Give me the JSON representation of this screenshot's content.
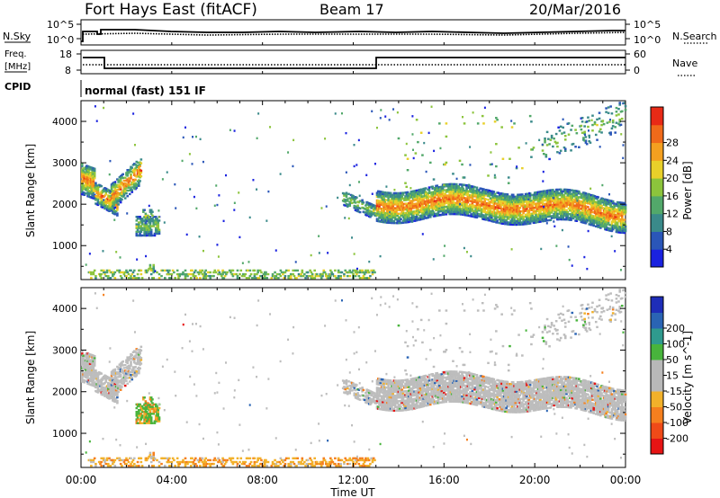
{
  "header": {
    "radar": "Fort Hays East (fitACF)",
    "beam": "Beam 17",
    "date": "20/Mar/2016"
  },
  "noise_panel": {
    "left_label": "N.Sky",
    "right_label": "N.Search",
    "left_ticks": [
      "10^5",
      "10^0"
    ],
    "right_ticks": [
      "10^5",
      "10^0"
    ]
  },
  "freq_panel": {
    "left_label": "Freq.",
    "left_unit": "[MHz]",
    "right_label": "Nave",
    "left_ticks": [
      "18",
      "8"
    ],
    "right_ticks": [
      "60",
      "0"
    ]
  },
  "cpid": {
    "label": "CPID",
    "mode": "normal (fast) 151 IF"
  },
  "x_axis": {
    "label": "Time UT",
    "ticks": [
      "00:00",
      "04:00",
      "08:00",
      "12:00",
      "16:00",
      "20:00",
      "00:00"
    ],
    "range_hours": [
      0,
      24
    ]
  },
  "y_axis": {
    "label": "Slant Range [km]",
    "ticks": [
      "1000",
      "2000",
      "3000",
      "4000"
    ],
    "range_km": [
      180,
      4500
    ]
  },
  "power_scale": {
    "label": "Power [dB]",
    "ticks": [
      "4",
      "8",
      "12",
      "16",
      "20",
      "24",
      "28"
    ],
    "colors": [
      "#1a22e0",
      "#2a56b8",
      "#3a8a8a",
      "#52a86a",
      "#8cc43c",
      "#e8d02a",
      "#f4a020",
      "#f06a1a",
      "#e82a16"
    ]
  },
  "velocity_scale": {
    "label": "Velocity [m s^-1]",
    "ticks": [
      "200",
      "100",
      "50",
      "15",
      "-15",
      "-50",
      "-100",
      "-200"
    ],
    "colors": [
      "#1e2db8",
      "#2a64b4",
      "#2f9a8e",
      "#48b43c",
      "#b8b8b8",
      "#b8b8b8",
      "#f2b12a",
      "#f57f1e",
      "#ef4a18",
      "#e61414"
    ]
  },
  "chart_data": {
    "type": "heatmap",
    "panels": [
      {
        "name": "Power",
        "unit": "dB",
        "x_label": "Time UT",
        "y_label": "Slant Range [km]",
        "xlim_hours": [
          0,
          24
        ],
        "ylim_km": [
          180,
          4500
        ],
        "regions": [
          {
            "t_start": 0.0,
            "t_end": 1.8,
            "range_center_km": 2600,
            "level": "high"
          },
          {
            "t_start": 1.3,
            "t_end": 3.0,
            "range_center_km": 2500,
            "level": "high"
          },
          {
            "t_start": 2.5,
            "t_end": 3.5,
            "range_center_km": 1500,
            "level": "medium"
          },
          {
            "t_start": 11.5,
            "t_end": 13.0,
            "range_center_km": 2100,
            "level": "medium"
          },
          {
            "t_start": 13.0,
            "t_end": 24.0,
            "range_center_km": 2000,
            "level": "high"
          },
          {
            "t_start": 20.5,
            "t_end": 24.0,
            "range_center_km": 3900,
            "level": "low"
          },
          {
            "t_start": 0.0,
            "t_end": 13.0,
            "range_center_km": 300,
            "level": "low"
          }
        ]
      },
      {
        "name": "Velocity",
        "unit": "m s^-1",
        "x_label": "Time UT",
        "y_label": "Slant Range [km]",
        "xlim_hours": [
          0,
          24
        ],
        "ylim_km": [
          180,
          4500
        ],
        "regions": [
          {
            "t_start": 0.0,
            "t_end": 3.0,
            "range_center_km": 2500,
            "velocity": "near zero"
          },
          {
            "t_start": 2.5,
            "t_end": 3.6,
            "range_center_km": 1500,
            "velocity": "positive ~50"
          },
          {
            "t_start": 13.0,
            "t_end": 24.0,
            "range_center_km": 2000,
            "velocity": "near zero"
          },
          {
            "t_start": 0.0,
            "t_end": 13.0,
            "range_center_km": 300,
            "velocity": "negative -15 to -50"
          }
        ]
      }
    ]
  }
}
